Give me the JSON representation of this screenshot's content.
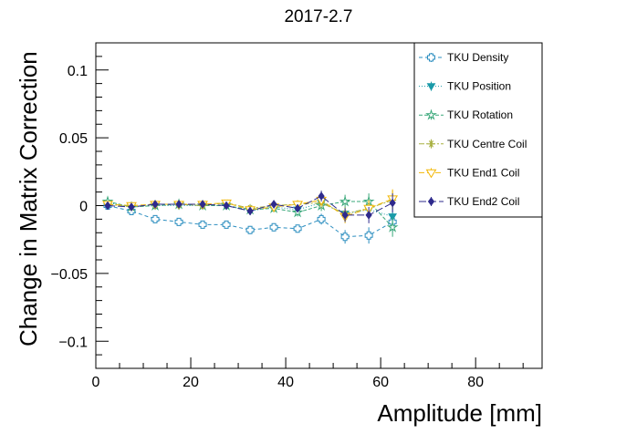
{
  "chart_data": {
    "type": "scatter",
    "title": "2017-2.7",
    "xlabel": "Amplitude [mm]",
    "ylabel": "Change in Matrix Correction",
    "xlim": [
      0,
      94
    ],
    "ylim": [
      -0.12,
      0.12
    ],
    "xticks": [
      0,
      20,
      40,
      60,
      80
    ],
    "xtick_labels": [
      "0",
      "20",
      "40",
      "60",
      "80"
    ],
    "yticks": [
      -0.1,
      -0.05,
      0,
      0.05,
      0.1
    ],
    "ytick_labels": [
      "−0.1",
      "−0.05",
      "0",
      "0.05",
      "0.1"
    ],
    "grid": false,
    "legend_position": "top-right",
    "x": [
      2.5,
      7.5,
      12.5,
      17.5,
      22.5,
      27.5,
      32.5,
      37.5,
      42.5,
      47.5,
      52.5,
      57.5,
      62.5
    ],
    "series": [
      {
        "name": "TKU Density",
        "color": "#2a8dbf",
        "marker": "open-cross",
        "dash": "4,3",
        "values": [
          0.0,
          -0.004,
          -0.01,
          -0.012,
          -0.014,
          -0.014,
          -0.018,
          -0.016,
          -0.017,
          -0.01,
          -0.023,
          -0.022,
          -0.012
        ],
        "errors": [
          0.002,
          0.002,
          0.002,
          0.002,
          0.002,
          0.002,
          0.003,
          0.003,
          0.003,
          0.004,
          0.005,
          0.006,
          0.007
        ]
      },
      {
        "name": "TKU Position",
        "color": "#1a9aa8",
        "marker": "tri-down",
        "dash": "1,2",
        "values": [
          0.002,
          -0.001,
          0.0,
          0.0,
          0.0,
          0.0,
          -0.004,
          -0.001,
          -0.003,
          0.002,
          -0.006,
          -0.003,
          -0.008
        ],
        "errors": [
          0.002,
          0.002,
          0.002,
          0.002,
          0.002,
          0.002,
          0.003,
          0.003,
          0.003,
          0.004,
          0.005,
          0.006,
          0.007
        ]
      },
      {
        "name": "TKU Rotation",
        "color": "#3aa87a",
        "marker": "open-star",
        "dash": "4,2",
        "values": [
          0.003,
          -0.001,
          0.0,
          0.001,
          0.0,
          0.0,
          -0.003,
          -0.002,
          -0.005,
          0.0,
          0.003,
          0.003,
          -0.016
        ],
        "errors": [
          0.002,
          0.002,
          0.002,
          0.002,
          0.002,
          0.002,
          0.003,
          0.003,
          0.003,
          0.004,
          0.005,
          0.006,
          0.007
        ]
      },
      {
        "name": "TKU Centre Coil",
        "color": "#a8b040",
        "marker": "asterisk",
        "dash": "6,2,2,2",
        "values": [
          0.001,
          -0.001,
          0.001,
          0.001,
          0.0,
          0.002,
          -0.002,
          0.0,
          0.001,
          0.002,
          -0.006,
          -0.002,
          0.004
        ],
        "errors": [
          0.002,
          0.002,
          0.002,
          0.002,
          0.002,
          0.002,
          0.003,
          0.003,
          0.003,
          0.004,
          0.005,
          0.006,
          0.007
        ]
      },
      {
        "name": "TKU End1 Coil",
        "color": "#f2b705",
        "marker": "open-tri-down",
        "dash": "6,3",
        "values": [
          0.001,
          0.0,
          0.001,
          0.001,
          0.001,
          0.002,
          -0.003,
          -0.001,
          0.001,
          0.004,
          -0.008,
          -0.002,
          0.005
        ],
        "errors": [
          0.002,
          0.002,
          0.002,
          0.002,
          0.002,
          0.002,
          0.003,
          0.003,
          0.003,
          0.004,
          0.005,
          0.006,
          0.007
        ]
      },
      {
        "name": "TKU End2 Coil",
        "color": "#2e2a8c",
        "marker": "diamond",
        "dash": "8,3",
        "values": [
          0.0,
          -0.001,
          0.001,
          0.001,
          0.001,
          0.0,
          -0.004,
          0.001,
          -0.002,
          0.007,
          -0.007,
          -0.007,
          0.002
        ],
        "errors": [
          0.002,
          0.002,
          0.002,
          0.002,
          0.002,
          0.002,
          0.003,
          0.003,
          0.003,
          0.004,
          0.005,
          0.006,
          0.007
        ]
      }
    ]
  }
}
